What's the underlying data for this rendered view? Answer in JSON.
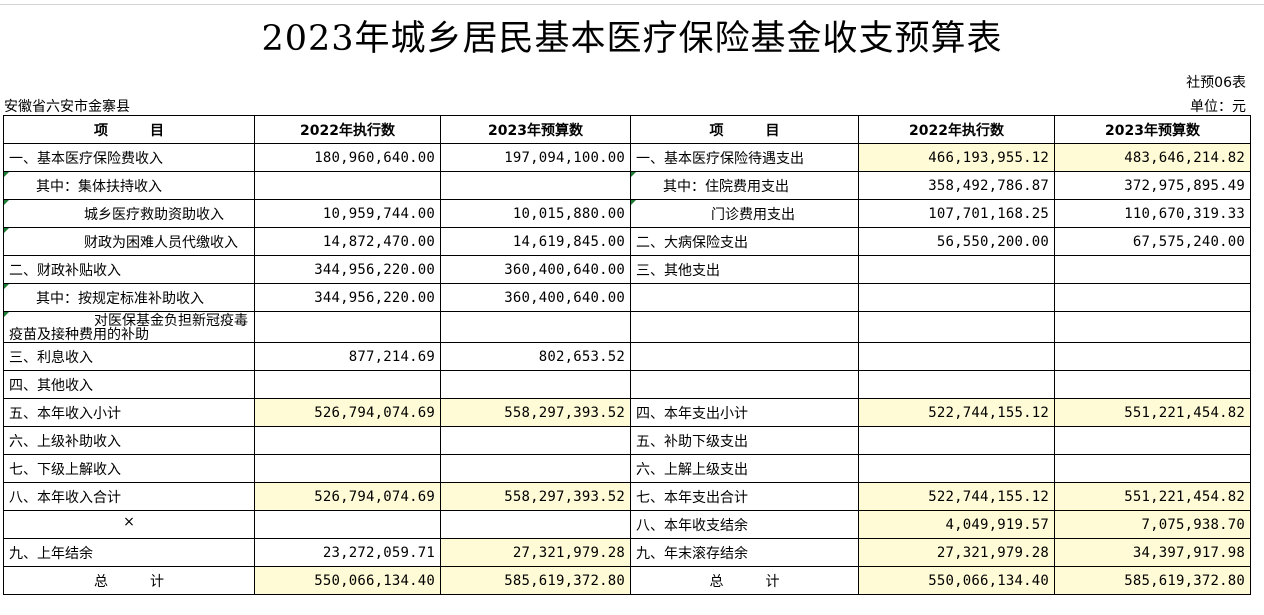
{
  "title": "2023年城乡居民基本医疗保险基金收支预算表",
  "table_code": "社预06表",
  "region": "安徽省六安市金寨县",
  "unit": "单位：元",
  "headers": {
    "item": "项　　　目",
    "exec_2022": "2022年执行数",
    "budget_2023": "2023年预算数"
  },
  "rows": [
    {
      "l_label": "一、基本医疗保险费收入",
      "l_exec": "180,960,640.00",
      "l_budget": "197,094,100.00",
      "r_label": "一、基本医疗保险待遇支出",
      "r_exec": "466,193,955.12",
      "r_budget": "483,646,214.82"
    },
    {
      "l_label": "其中：集体扶持收入",
      "l_exec": "",
      "l_budget": "",
      "r_label": "其中：住院费用支出",
      "r_exec": "358,492,786.87",
      "r_budget": "372,975,895.49"
    },
    {
      "l_label": "城乡医疗救助资助收入",
      "l_exec": "10,959,744.00",
      "l_budget": "10,015,880.00",
      "r_label": "门诊费用支出",
      "r_exec": "107,701,168.25",
      "r_budget": "110,670,319.33"
    },
    {
      "l_label": "财政为困难人员代缴收入",
      "l_exec": "14,872,470.00",
      "l_budget": "14,619,845.00",
      "r_label": "二、大病保险支出",
      "r_exec": "56,550,200.00",
      "r_budget": "67,575,240.00"
    },
    {
      "l_label": "二、财政补贴收入",
      "l_exec": "344,956,220.00",
      "l_budget": "360,400,640.00",
      "r_label": "三、其他支出",
      "r_exec": "",
      "r_budget": ""
    },
    {
      "l_label": "其中：按规定标准补助收入",
      "l_exec": "344,956,220.00",
      "l_budget": "360,400,640.00",
      "r_label": "",
      "r_exec": "",
      "r_budget": ""
    },
    {
      "l_label": "对医保基金负担新冠疫毒疫苗及接种费用的补助",
      "l_exec": "",
      "l_budget": "",
      "r_label": "",
      "r_exec": "",
      "r_budget": ""
    },
    {
      "l_label": "三、利息收入",
      "l_exec": "877,214.69",
      "l_budget": "802,653.52",
      "r_label": "",
      "r_exec": "",
      "r_budget": ""
    },
    {
      "l_label": "四、其他收入",
      "l_exec": "",
      "l_budget": "",
      "r_label": "",
      "r_exec": "",
      "r_budget": ""
    },
    {
      "l_label": "五、本年收入小计",
      "l_exec": "526,794,074.69",
      "l_budget": "558,297,393.52",
      "r_label": "四、本年支出小计",
      "r_exec": "522,744,155.12",
      "r_budget": "551,221,454.82"
    },
    {
      "l_label": "六、上级补助收入",
      "l_exec": "",
      "l_budget": "",
      "r_label": "五、补助下级支出",
      "r_exec": "",
      "r_budget": ""
    },
    {
      "l_label": "七、下级上解收入",
      "l_exec": "",
      "l_budget": "",
      "r_label": "六、上解上级支出",
      "r_exec": "",
      "r_budget": ""
    },
    {
      "l_label": "八、本年收入合计",
      "l_exec": "526,794,074.69",
      "l_budget": "558,297,393.52",
      "r_label": "七、本年支出合计",
      "r_exec": "522,744,155.12",
      "r_budget": "551,221,454.82"
    },
    {
      "l_label": "×",
      "l_exec": "",
      "l_budget": "",
      "r_label": "八、本年收支结余",
      "r_exec": "4,049,919.57",
      "r_budget": "7,075,938.70"
    },
    {
      "l_label": "九、上年结余",
      "l_exec": "23,272,059.71",
      "l_budget": "27,321,979.28",
      "r_label": "九、年末滚存结余",
      "r_exec": "27,321,979.28",
      "r_budget": "34,397,917.98"
    },
    {
      "l_label": "总　　　计",
      "l_exec": "550,066,134.40",
      "l_budget": "585,619,372.80",
      "r_label": "总　　　计",
      "r_exec": "550,066,134.40",
      "r_budget": "585,619,372.80"
    }
  ],
  "highlight_color": "#fffbd6"
}
